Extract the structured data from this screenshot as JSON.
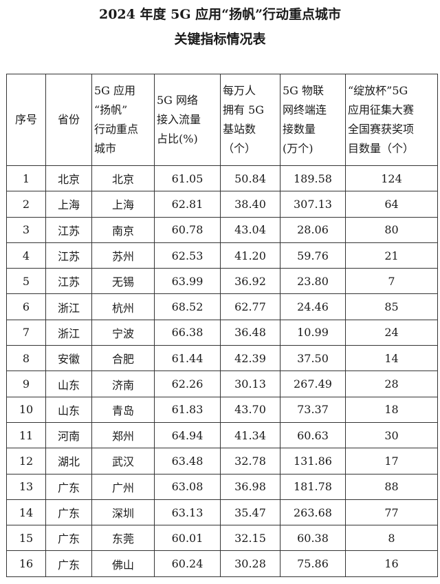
{
  "title_line1": "2024 年度 5G 应用“扬帆”行动重点城市",
  "title_line2": "关键指标情况表",
  "headers": [
    "序号",
    "省份",
    "5G 应用\n“扬帆”\n行动重点\n城市",
    "5G 网络\n接入流量\n占比(%)",
    "每万人\n拥有 5G\n基站数\n（个）",
    "5G 物联\n网终端连\n接数量\n(万个)",
    "“绽放杯”5G\n应用征集大赛\n全国赛获奖项\n目数量（个）"
  ],
  "rows": [
    [
      "1",
      "北京",
      "北京",
      "61.05",
      "50.84",
      "189.58",
      "124"
    ],
    [
      "2",
      "上海",
      "上海",
      "62.81",
      "38.40",
      "307.13",
      "64"
    ],
    [
      "3",
      "江苏",
      "南京",
      "60.78",
      "43.04",
      "28.06",
      "80"
    ],
    [
      "4",
      "江苏",
      "苏州",
      "62.53",
      "41.20",
      "59.76",
      "21"
    ],
    [
      "5",
      "江苏",
      "无锡",
      "63.99",
      "36.92",
      "23.80",
      "7"
    ],
    [
      "6",
      "浙江",
      "杭州",
      "68.52",
      "62.77",
      "24.46",
      "85"
    ],
    [
      "7",
      "浙江",
      "宁波",
      "66.38",
      "36.48",
      "10.99",
      "24"
    ],
    [
      "8",
      "安徽",
      "合肥",
      "61.44",
      "42.39",
      "37.50",
      "14"
    ],
    [
      "9",
      "山东",
      "济南",
      "62.26",
      "30.13",
      "267.49",
      "28"
    ],
    [
      "10",
      "山东",
      "青岛",
      "61.83",
      "43.70",
      "73.37",
      "18"
    ],
    [
      "11",
      "河南",
      "郑州",
      "64.94",
      "41.34",
      "60.63",
      "30"
    ],
    [
      "12",
      "湖北",
      "武汉",
      "63.48",
      "32.78",
      "131.86",
      "17"
    ],
    [
      "13",
      "广东",
      "广州",
      "63.08",
      "36.98",
      "181.78",
      "88"
    ],
    [
      "14",
      "广东",
      "深圳",
      "63.13",
      "35.47",
      "263.68",
      "77"
    ],
    [
      "15",
      "广东",
      "东莞",
      "60.01",
      "32.15",
      "60.38",
      "8"
    ],
    [
      "16",
      "广东",
      "佛山",
      "60.24",
      "30.28",
      "75.86",
      "16"
    ]
  ]
}
